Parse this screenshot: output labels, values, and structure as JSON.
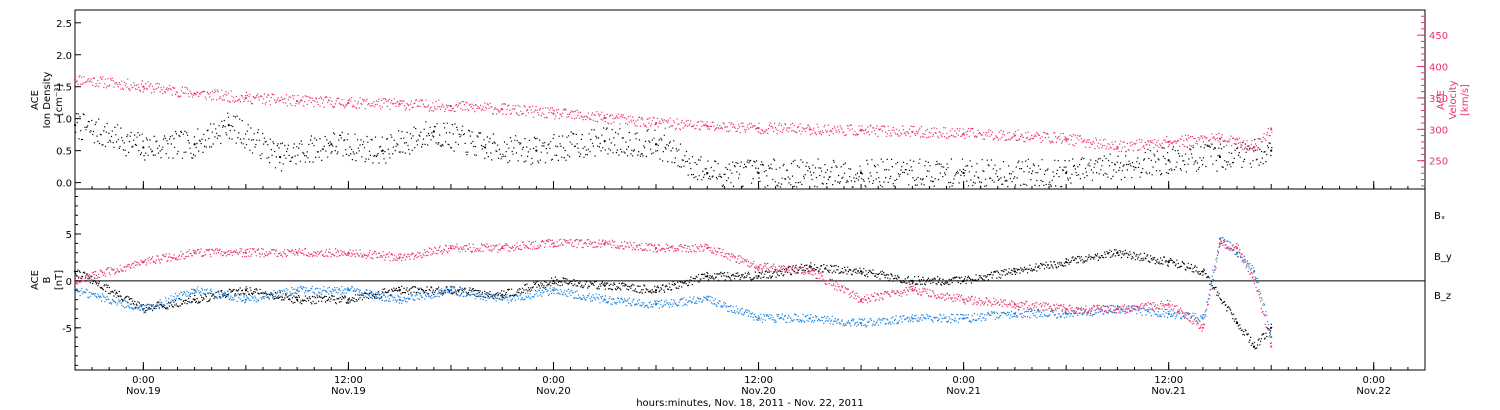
{
  "chart_data": [
    {
      "type": "scatter",
      "panel": "top",
      "left_axis": {
        "label_lines": [
          "ACE",
          "Ion Density",
          "[cm⁻³]"
        ],
        "ylim": [
          -0.1,
          2.7
        ],
        "ticks": [
          0.0,
          0.5,
          1.0,
          1.5,
          2.0,
          2.5
        ],
        "tick_labels": [
          "0.0",
          "0.5",
          "1.0",
          "1.5",
          "2.0",
          "2.5"
        ],
        "color": "#000000"
      },
      "right_axis": {
        "label_lines": [
          "ACE",
          "Velocity",
          "[km/s]"
        ],
        "ylim": [
          205,
          490
        ],
        "ticks": [
          250,
          300,
          350,
          400,
          450
        ],
        "tick_labels": [
          "250",
          "300",
          "350",
          "400",
          "450"
        ],
        "color": "#e8336b"
      },
      "series": [
        {
          "color": "#000000",
          "axis": "left",
          "x": [
            "18 Nov 20:00",
            "19 Nov 00:00",
            "19 Nov 03:00",
            "19 Nov 05:00",
            "19 Nov 08:00",
            "19 Nov 11:00",
            "19 Nov 14:00",
            "19 Nov 17:00",
            "19 Nov 20:00",
            "19 Nov 23:00",
            "20 Nov 03:00",
            "20 Nov 06:00",
            "20 Nov 09:00",
            "20 Nov 12:00",
            "20 Nov 18:00",
            "21 Nov 00:00",
            "21 Nov 06:00",
            "21 Nov 12:00",
            "21 Nov 15:00",
            "21 Nov 18:00"
          ],
          "y": [
            0.9,
            0.55,
            0.6,
            0.9,
            0.4,
            0.6,
            0.5,
            0.8,
            0.55,
            0.5,
            0.65,
            0.6,
            0.15,
            0.15,
            0.15,
            0.15,
            0.15,
            0.35,
            0.4,
            0.5
          ]
        },
        {
          "color": "#e8336b",
          "axis": "right",
          "x": [
            "18 Nov 20:00",
            "19 Nov 00:00",
            "19 Nov 03:00",
            "19 Nov 06:00",
            "19 Nov 09:00",
            "19 Nov 12:00",
            "19 Nov 15:00",
            "19 Nov 18:00",
            "19 Nov 21:00",
            "20 Nov 00:00",
            "20 Nov 03:00",
            "20 Nov 06:00",
            "20 Nov 09:00",
            "20 Nov 12:00",
            "20 Nov 15:00",
            "20 Nov 18:00",
            "20 Nov 21:00",
            "21 Nov 00:00",
            "21 Nov 03:00",
            "21 Nov 06:00",
            "21 Nov 09:00",
            "21 Nov 12:00",
            "21 Nov 15:00",
            "21 Nov 17:00",
            "21 Nov 18:00"
          ],
          "y": [
            380,
            368,
            357,
            350,
            345,
            342,
            340,
            337,
            332,
            325,
            318,
            310,
            305,
            302,
            300,
            298,
            296,
            293,
            290,
            285,
            272,
            280,
            285,
            272,
            300
          ]
        }
      ]
    },
    {
      "type": "scatter",
      "panel": "bottom",
      "left_axis": {
        "label_lines": [
          "ACE",
          "B",
          "[nT]"
        ],
        "ylim": [
          -9.5,
          9.8
        ],
        "ticks": [
          -5,
          0,
          5
        ],
        "tick_labels": [
          "-5",
          "0",
          "5"
        ],
        "color": "#000000"
      },
      "zero_line": 0,
      "series": [
        {
          "name": "Bₓ",
          "color": "#000000",
          "x": [
            "18 Nov 20:00",
            "19 Nov 00:00",
            "19 Nov 03:00",
            "19 Nov 06:00",
            "19 Nov 09:00",
            "19 Nov 12:00",
            "19 Nov 15:00",
            "19 Nov 18:00",
            "19 Nov 21:00",
            "20 Nov 00:00",
            "20 Nov 03:00",
            "20 Nov 06:00",
            "20 Nov 09:00",
            "20 Nov 12:00",
            "20 Nov 15:00",
            "20 Nov 18:00",
            "20 Nov 21:00",
            "21 Nov 00:00",
            "21 Nov 03:00",
            "21 Nov 06:00",
            "21 Nov 09:00",
            "21 Nov 12:00",
            "21 Nov 14:00",
            "21 Nov 16:00",
            "21 Nov 17:00",
            "21 Nov 18:00"
          ],
          "y": [
            1,
            -3,
            -2,
            -1,
            -2,
            -2,
            -1,
            -1,
            -1.5,
            0,
            -0.5,
            -1,
            0.5,
            0.5,
            1.5,
            1,
            0,
            0,
            1,
            2,
            3,
            2,
            1,
            -4.5,
            -7,
            -5
          ]
        },
        {
          "name": "B_y",
          "color": "#1a80e0",
          "x": [
            "18 Nov 20:00",
            "19 Nov 00:00",
            "19 Nov 03:00",
            "19 Nov 06:00",
            "19 Nov 09:00",
            "19 Nov 12:00",
            "19 Nov 15:00",
            "19 Nov 18:00",
            "19 Nov 21:00",
            "20 Nov 00:00",
            "20 Nov 03:00",
            "20 Nov 06:00",
            "20 Nov 09:00",
            "20 Nov 12:00",
            "20 Nov 15:00",
            "20 Nov 18:00",
            "20 Nov 21:00",
            "21 Nov 00:00",
            "21 Nov 03:00",
            "21 Nov 06:00",
            "21 Nov 09:00",
            "21 Nov 12:00",
            "21 Nov 14:00",
            "21 Nov 15:00",
            "21 Nov 16:00",
            "21 Nov 17:00",
            "21 Nov 18:00"
          ],
          "y": [
            -1,
            -3,
            -1,
            -2,
            -1,
            -1,
            -2,
            -1,
            -2,
            -1,
            -2,
            -2.5,
            -2,
            -4,
            -4,
            -4.5,
            -4,
            -4,
            -3.5,
            -3.5,
            -3,
            -3.5,
            -4,
            4.5,
            3,
            1,
            -6
          ]
        },
        {
          "name": "B_z",
          "color": "#e8336b",
          "x": [
            "18 Nov 20:00",
            "19 Nov 00:00",
            "19 Nov 03:00",
            "19 Nov 06:00",
            "19 Nov 09:00",
            "19 Nov 12:00",
            "19 Nov 15:00",
            "19 Nov 18:00",
            "19 Nov 21:00",
            "20 Nov 00:00",
            "20 Nov 03:00",
            "20 Nov 06:00",
            "20 Nov 09:00",
            "20 Nov 12:00",
            "20 Nov 15:00",
            "20 Nov 18:00",
            "20 Nov 21:00",
            "21 Nov 00:00",
            "21 Nov 03:00",
            "21 Nov 06:00",
            "21 Nov 09:00",
            "21 Nov 12:00",
            "21 Nov 14:00",
            "21 Nov 15:00",
            "21 Nov 16:00",
            "21 Nov 17:00",
            "21 Nov 18:00"
          ],
          "y": [
            0,
            2,
            3,
            3,
            3,
            3,
            2.5,
            3.5,
            3.5,
            4,
            4,
            3.5,
            3.5,
            1.5,
            1,
            -2,
            -1,
            -2,
            -2.5,
            -3,
            -3,
            -2.5,
            -5,
            4,
            3.5,
            0,
            -7
          ]
        }
      ]
    }
  ],
  "x_axis": {
    "range": [
      "18 Nov 20:00",
      "22 Nov 03:00"
    ],
    "major_ticks": [
      {
        "at": "19 Nov 00:00",
        "time": "0:00",
        "date": "Nov.19"
      },
      {
        "at": "19 Nov 12:00",
        "time": "12:00",
        "date": "Nov.19"
      },
      {
        "at": "20 Nov 00:00",
        "time": "0:00",
        "date": "Nov.20"
      },
      {
        "at": "20 Nov 12:00",
        "time": "12:00",
        "date": "Nov.20"
      },
      {
        "at": "21 Nov 00:00",
        "time": "0:00",
        "date": "Nov.21"
      },
      {
        "at": "21 Nov 12:00",
        "time": "12:00",
        "date": "Nov.21"
      },
      {
        "at": "22 Nov 00:00",
        "time": "0:00",
        "date": "Nov.22"
      }
    ],
    "label": "hours:minutes, Nov. 18, 2011 - Nov. 22, 2011"
  },
  "legend": [
    {
      "label": "Bₓ",
      "color": "#000000"
    },
    {
      "label": "B_y",
      "color": "#1a80e0"
    },
    {
      "label": "B_z",
      "color": "#e8336b"
    }
  ],
  "legend_placement": "right"
}
